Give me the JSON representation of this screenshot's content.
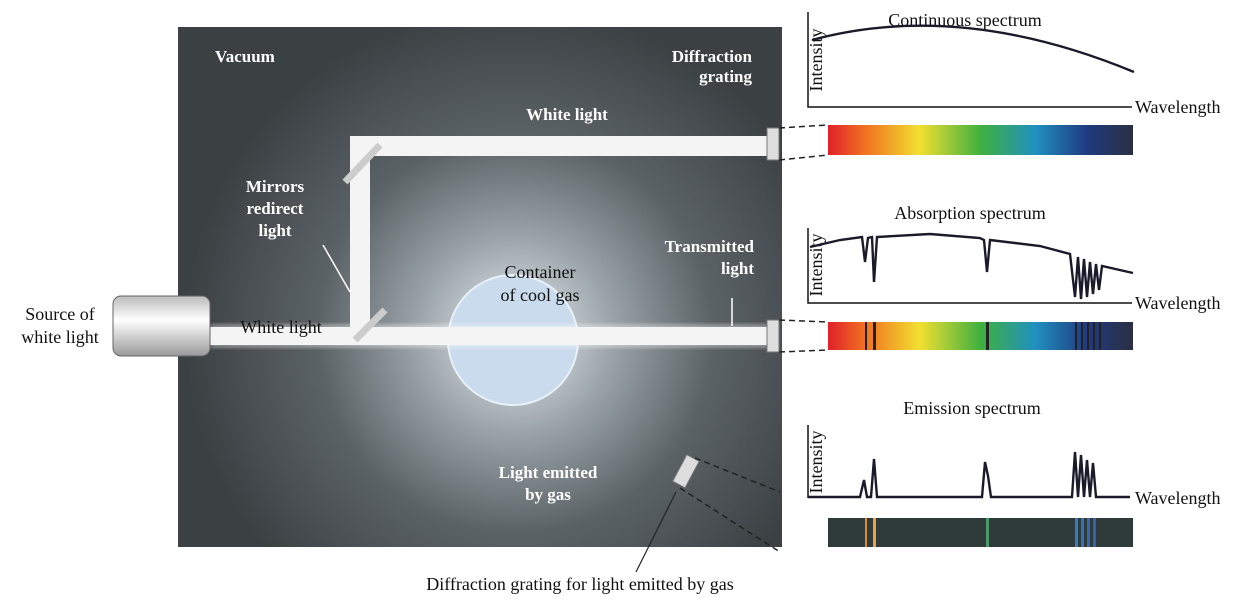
{
  "labels": {
    "vacuum": "Vacuum",
    "diffraction_grating": [
      "Diffraction",
      "grating"
    ],
    "white_light_top": "White light",
    "mirrors": [
      "Mirrors",
      "redirect",
      "light"
    ],
    "transmitted_light": [
      "Transmitted",
      "light"
    ],
    "container": [
      "Container",
      "of cool gas"
    ],
    "source": [
      "Source of",
      "white light"
    ],
    "white_light_bottom": "White light",
    "light_emitted": [
      "Light emitted",
      "by gas"
    ],
    "grating_emitted": "Diffraction grating for light emitted by gas"
  },
  "panels": [
    {
      "title": "Continuous spectrum",
      "y_axis": "Intensity",
      "x_axis": "Wavelength"
    },
    {
      "title": "Absorption spectrum",
      "y_axis": "Intensity",
      "x_axis": "Wavelength"
    },
    {
      "title": "Emission spectrum",
      "y_axis": "Intensity",
      "x_axis": "Wavelength"
    }
  ]
}
